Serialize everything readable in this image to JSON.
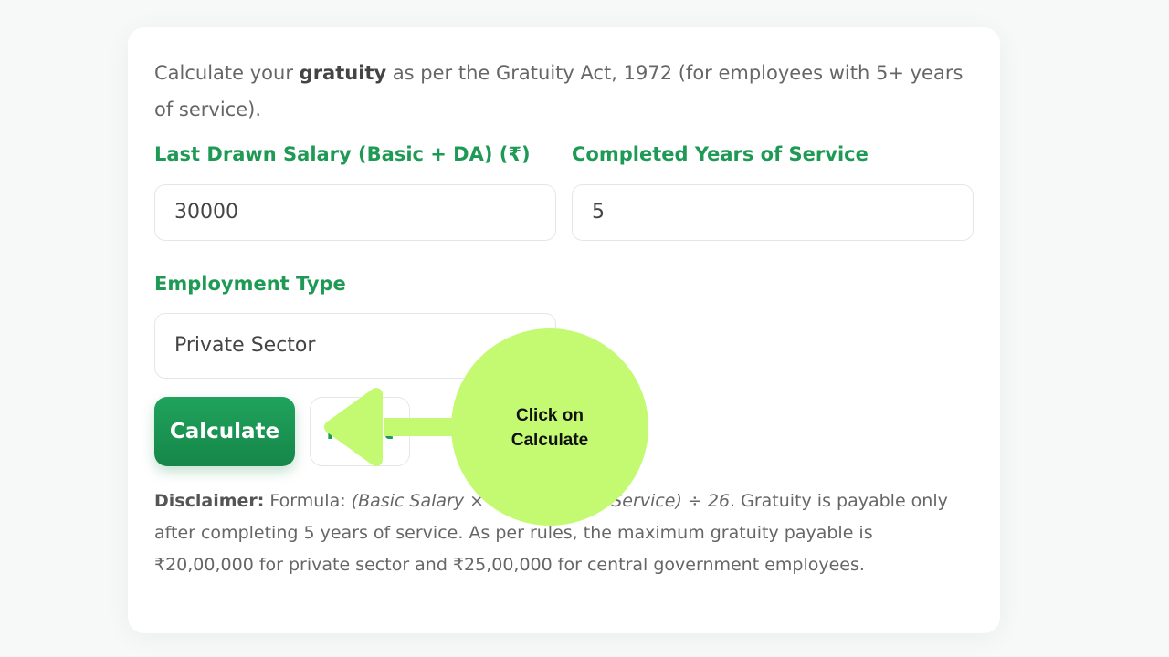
{
  "intro": {
    "before": "Calculate your ",
    "bold": "gratuity",
    "after": " as per the Gratuity Act, 1972 (for employees with 5+ years of service)."
  },
  "fields": {
    "salary": {
      "label": "Last Drawn Salary (Basic + DA) (₹)",
      "value": "30000"
    },
    "years": {
      "label": "Completed Years of Service",
      "value": "5"
    },
    "type": {
      "label": "Employment Type",
      "value": "Private Sector"
    }
  },
  "buttons": {
    "calculate": "Calculate",
    "reset": "Reset"
  },
  "disclaimer": {
    "bold": "Disclaimer:",
    "pre": " Formula: ",
    "formula": "(Basic Salary × 15 × Years of Service) ÷ 26",
    "post": ". Gratuity is payable only after completing 5 years of service. As per rules, the maximum gratuity payable is ₹20,00,000 for private sector and ₹25,00,000 for central government employees."
  },
  "annotation": {
    "text": "Click on Calculate",
    "color": "#c3fa72"
  }
}
